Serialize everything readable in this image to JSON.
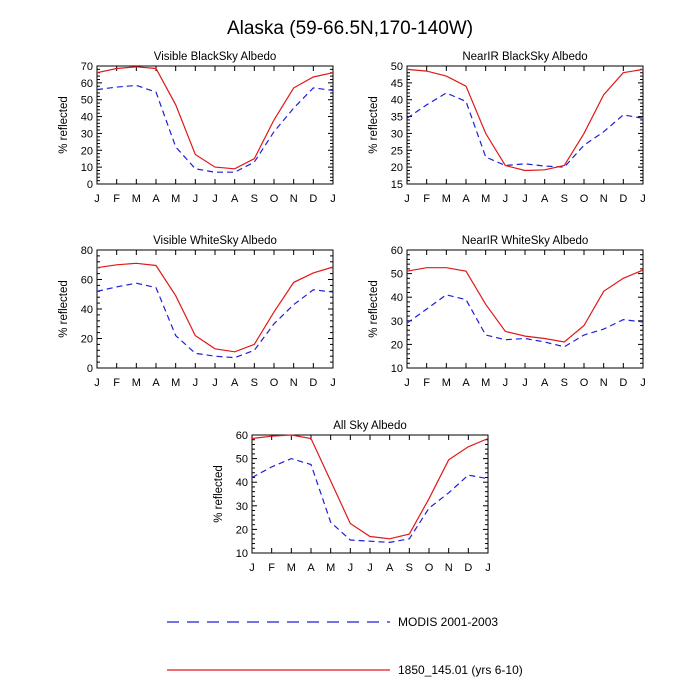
{
  "figure": {
    "title": "Alaska (59-66.5N,170-140W)"
  },
  "colors": {
    "modis": "#1f1fd8",
    "model": "#e01818",
    "axis": "#000000"
  },
  "legend": {
    "items": [
      {
        "label": "MODIS 2001-2003",
        "style": "dashed",
        "color_key": "modis"
      },
      {
        "label": "1850_145.01 (yrs 6-10)",
        "style": "solid",
        "color_key": "model"
      }
    ]
  },
  "chart_data": [
    {
      "type": "line",
      "title": "Visible BlackSky Albedo",
      "ylabel": "% reflected",
      "ylim": [
        0,
        70
      ],
      "yticks": [
        0,
        10,
        20,
        30,
        40,
        50,
        60,
        70
      ],
      "categories": [
        "J",
        "F",
        "M",
        "A",
        "M",
        "J",
        "J",
        "A",
        "S",
        "O",
        "N",
        "D",
        "J"
      ],
      "series": [
        {
          "name": "MODIS 2001-2003",
          "style": "dashed",
          "values": [
            56,
            57.5,
            58.5,
            54.5,
            22,
            9,
            7,
            7,
            13,
            31,
            45,
            57,
            55.5
          ]
        },
        {
          "name": "1850_145.01 (yrs 6-10)",
          "style": "solid",
          "values": [
            66,
            68.5,
            69.5,
            68.5,
            47,
            17.5,
            10,
            9,
            15,
            38,
            57,
            63.5,
            66
          ]
        }
      ]
    },
    {
      "type": "line",
      "title": "NearIR BlackSky Albedo",
      "ylabel": "% reflected",
      "ylim": [
        15,
        50
      ],
      "yticks": [
        15,
        20,
        25,
        30,
        35,
        40,
        45,
        50
      ],
      "categories": [
        "J",
        "F",
        "M",
        "A",
        "M",
        "J",
        "J",
        "A",
        "S",
        "O",
        "N",
        "D",
        "J"
      ],
      "series": [
        {
          "name": "MODIS 2001-2003",
          "style": "dashed",
          "values": [
            34.5,
            38.5,
            42,
            39.5,
            23,
            20.5,
            21,
            20.3,
            20,
            26.5,
            30.5,
            35.5,
            34.5
          ]
        },
        {
          "name": "1850_145.01 (yrs 6-10)",
          "style": "solid",
          "values": [
            49,
            48.5,
            47,
            44,
            30,
            20.5,
            19,
            19.2,
            20.5,
            30,
            41.5,
            48,
            49
          ]
        }
      ]
    },
    {
      "type": "line",
      "title": "Visible WhiteSky Albedo",
      "ylabel": "% reflected",
      "ylim": [
        0,
        80
      ],
      "yticks": [
        0,
        20,
        40,
        60,
        80
      ],
      "categories": [
        "J",
        "F",
        "M",
        "A",
        "M",
        "J",
        "J",
        "A",
        "S",
        "O",
        "N",
        "D",
        "J"
      ],
      "series": [
        {
          "name": "MODIS 2001-2003",
          "style": "dashed",
          "values": [
            52,
            55,
            57.5,
            54.5,
            22,
            10,
            8,
            7,
            12,
            30,
            43,
            53,
            51.5
          ]
        },
        {
          "name": "1850_145.01 (yrs 6-10)",
          "style": "solid",
          "values": [
            68,
            70,
            71,
            69.5,
            49,
            22,
            13,
            11,
            16,
            38,
            58,
            64.5,
            68.5
          ]
        }
      ]
    },
    {
      "type": "line",
      "title": "NearIR WhiteSky Albedo",
      "ylabel": "% reflected",
      "ylim": [
        10,
        60
      ],
      "yticks": [
        10,
        20,
        30,
        40,
        50,
        60
      ],
      "categories": [
        "J",
        "F",
        "M",
        "A",
        "M",
        "J",
        "J",
        "A",
        "S",
        "O",
        "N",
        "D",
        "J"
      ],
      "series": [
        {
          "name": "MODIS 2001-2003",
          "style": "dashed",
          "values": [
            29,
            35,
            41,
            39,
            24,
            22,
            22.5,
            21,
            19,
            24,
            26.5,
            30.5,
            29.5
          ]
        },
        {
          "name": "1850_145.01 (yrs 6-10)",
          "style": "solid",
          "values": [
            51,
            52.5,
            52.5,
            51,
            37,
            25.5,
            23.5,
            22.5,
            21,
            28,
            42.5,
            48,
            51.5
          ]
        }
      ]
    },
    {
      "type": "line",
      "title": "All Sky Albedo",
      "ylabel": "% reflected",
      "ylim": [
        10,
        60
      ],
      "yticks": [
        10,
        20,
        30,
        40,
        50,
        60
      ],
      "categories": [
        "J",
        "F",
        "M",
        "A",
        "M",
        "J",
        "J",
        "A",
        "S",
        "O",
        "N",
        "D",
        "J"
      ],
      "series": [
        {
          "name": "MODIS 2001-2003",
          "style": "dashed",
          "values": [
            42,
            46.5,
            50,
            47.5,
            23,
            15.5,
            15,
            14.5,
            16,
            29,
            35.5,
            43,
            41.5
          ]
        },
        {
          "name": "1850_145.01 (yrs 6-10)",
          "style": "solid",
          "values": [
            58.5,
            59.5,
            60,
            58.5,
            40.5,
            22.5,
            17,
            16,
            18,
            33,
            49.5,
            55,
            58.5
          ]
        }
      ]
    }
  ]
}
